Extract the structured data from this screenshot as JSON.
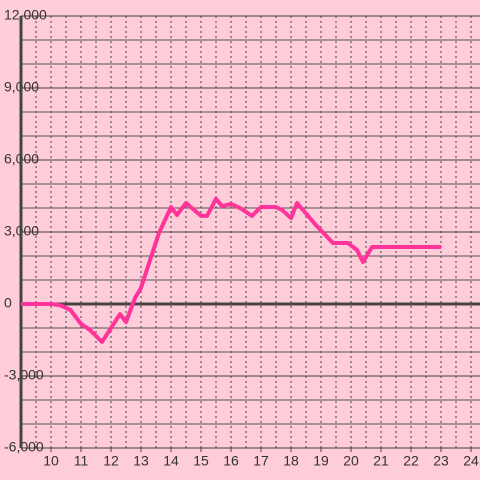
{
  "chart_data": {
    "type": "line",
    "x": [
      9.0,
      10,
      10.3,
      10.65,
      11,
      11.3,
      11.7,
      12.3,
      12.5,
      12.8,
      13,
      13.3,
      13.6,
      14,
      14.2,
      14.5,
      15,
      15.2,
      15.5,
      15.7,
      16,
      16.3,
      16.7,
      17,
      17.5,
      17.7,
      18,
      18.2,
      18.8,
      19.4,
      19.9,
      20.2,
      20.4,
      20.7,
      23
    ],
    "series": [
      {
        "color": "#ff3399",
        "values": [
          0,
          0,
          -50,
          -250,
          -830,
          -1080,
          -1580,
          -420,
          -750,
          250,
          670,
          1830,
          2960,
          4040,
          3710,
          4210,
          3670,
          3670,
          4380,
          4080,
          4170,
          4000,
          3670,
          4040,
          4040,
          3920,
          3580,
          4210,
          3330,
          2540,
          2540,
          2250,
          1750,
          2375,
          2375
        ]
      }
    ],
    "xlim": [
      9,
      24.3
    ],
    "xticks": [
      10,
      11,
      12,
      13,
      14,
      15,
      16,
      17,
      18,
      19,
      20,
      21,
      22,
      23,
      24
    ],
    "ylim": [
      -6000,
      12000
    ],
    "yticks": [
      {
        "value": 12000,
        "label": "12,000"
      },
      {
        "value": 9000,
        "label": "9,000"
      },
      {
        "value": 6000,
        "label": "6,000"
      },
      {
        "value": 3000,
        "label": "3,000"
      },
      0,
      {
        "value": -3000,
        "label": "-3,000"
      },
      {
        "value": -6000,
        "label": "-6,000"
      }
    ],
    "grid": true,
    "minor_y_step": 1000,
    "minor_x_step": 0.5
  }
}
